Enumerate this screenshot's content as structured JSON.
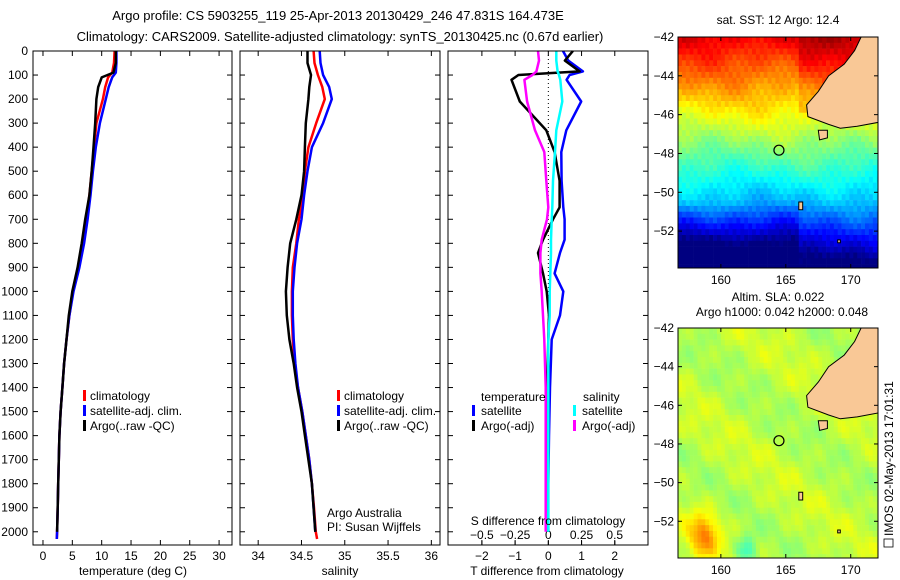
{
  "header": {
    "title_line1": "Argo profile: CS 5903255_119 25-Apr-2013 20130429_246 47.831S 164.473E",
    "title_line2": "Climatology: CARS2009. Satellite-adjusted climatology: synTS_20130425.nc (0.67d earlier)"
  },
  "footer_stamp": "IMOS 02-May-2013 17:01:31",
  "colors": {
    "climatology": "#ff0000",
    "satellite": "#0000ff",
    "argo": "#000000",
    "sal_satellite": "#00ffff",
    "sal_argo": "#ff00ff",
    "land": "#f9c896"
  },
  "chart_data": [
    {
      "type": "line",
      "id": "temperature",
      "xlabel": "temperature (deg C)",
      "ylabel": "",
      "xlim": [
        -1.7,
        32.2
      ],
      "ylim": [
        2055,
        0
      ],
      "xticks": [
        0,
        5,
        10,
        15,
        20,
        25,
        30
      ],
      "yticks": [
        0,
        100,
        200,
        300,
        400,
        500,
        600,
        700,
        800,
        900,
        1000,
        1100,
        1200,
        1300,
        1400,
        1500,
        1600,
        1700,
        1800,
        1900,
        2000
      ],
      "depth": [
        0,
        50,
        90,
        110,
        150,
        200,
        300,
        400,
        500,
        600,
        700,
        800,
        900,
        1000,
        1100,
        1200,
        1300,
        1400,
        1500,
        1600,
        1700,
        1800,
        1900,
        2000,
        2030
      ],
      "legend": [
        "climatology",
        "satellite-adj. clim.",
        "Argo(..raw -QC)"
      ],
      "legend_position": "center",
      "series": [
        {
          "name": "climatology",
          "color": "#ff0000",
          "values": [
            12.2,
            12.1,
            11.8,
            11.1,
            10.6,
            10.2,
            9.1,
            8.7,
            8.3,
            7.9,
            7.4,
            6.8,
            6.0,
            5.1,
            4.5,
            4.0,
            3.6,
            3.3,
            3.0,
            2.8,
            2.7,
            2.6,
            2.5,
            2.4,
            2.35
          ]
        },
        {
          "name": "satellite-adj. clim.",
          "color": "#0000ff",
          "values": [
            12.5,
            12.5,
            12.4,
            11.8,
            11.2,
            10.7,
            9.7,
            9.0,
            8.5,
            8.1,
            7.6,
            7.0,
            6.2,
            5.2,
            4.5,
            4.0,
            3.6,
            3.3,
            3.0,
            2.8,
            2.7,
            2.6,
            2.5,
            2.4,
            2.35
          ]
        },
        {
          "name": "Argo(..raw -QC)",
          "color": "#000000",
          "values": [
            12.4,
            12.4,
            12.0,
            10.0,
            9.4,
            9.1,
            8.9,
            8.6,
            8.3,
            7.9,
            7.2,
            6.6,
            5.9,
            5.0,
            4.4,
            4.0,
            3.6,
            3.3,
            3.0,
            2.8,
            2.7,
            2.6,
            2.5,
            2.4,
            null
          ]
        }
      ]
    },
    {
      "type": "line",
      "id": "salinity",
      "xlabel": "salinity",
      "xlim": [
        33.79,
        36.1
      ],
      "ylim": [
        2055,
        0
      ],
      "xticks": [
        34,
        34.5,
        35,
        35.5,
        36
      ],
      "depth": [
        0,
        50,
        100,
        150,
        200,
        300,
        400,
        500,
        600,
        700,
        800,
        900,
        1000,
        1100,
        1200,
        1300,
        1400,
        1500,
        1600,
        1700,
        1800,
        1900,
        2000,
        2030
      ],
      "legend": [
        "climatology",
        "satellite-adj. clim.",
        "Argo(..raw -QC)"
      ],
      "annotation": [
        "Argo Australia",
        "PI: Susan Wijffels"
      ],
      "series": [
        {
          "name": "climatology",
          "color": "#ff0000",
          "values": [
            34.64,
            34.65,
            34.69,
            34.74,
            34.77,
            34.67,
            34.58,
            34.54,
            34.52,
            34.47,
            34.44,
            34.4,
            34.39,
            34.39,
            34.4,
            34.42,
            34.46,
            34.51,
            34.55,
            34.59,
            34.62,
            34.645,
            34.665,
            34.68
          ]
        },
        {
          "name": "satellite-adj. clim.",
          "color": "#0000ff",
          "values": [
            34.71,
            34.72,
            34.75,
            34.82,
            34.85,
            34.75,
            34.62,
            34.57,
            34.53,
            34.5,
            34.45,
            34.42,
            34.4,
            34.4,
            34.41,
            34.43,
            34.46,
            34.51,
            34.55,
            34.59,
            34.62,
            34.64,
            34.66,
            null
          ]
        },
        {
          "name": "Argo(..raw -QC)",
          "color": "#000000",
          "values": [
            34.57,
            34.57,
            34.61,
            34.59,
            34.58,
            34.55,
            34.54,
            34.53,
            34.5,
            34.44,
            34.37,
            34.34,
            34.32,
            34.33,
            34.36,
            34.41,
            34.45,
            34.5,
            34.54,
            34.58,
            34.62,
            34.64,
            34.66,
            null
          ]
        }
      ]
    },
    {
      "type": "line",
      "id": "difference",
      "xlabel": "T difference from climatology",
      "x2label": "S difference from climatology",
      "xlim": [
        -3.02,
        3.0
      ],
      "ylim": [
        2055,
        0
      ],
      "xticks": [
        -2,
        -1,
        0,
        1,
        2
      ],
      "x2ticks": [
        -0.5,
        -0.25,
        0,
        0.25,
        0.5
      ],
      "x2tick_labels": [
        "-0.5",
        "-0.25",
        "0",
        "0.25",
        "0.5"
      ],
      "depth": [
        0,
        40,
        85,
        100,
        120,
        210,
        330,
        420,
        540,
        650,
        700,
        785,
        840,
        925,
        1000,
        1100,
        1200,
        1400,
        1600,
        1800,
        2000
      ],
      "legend_titles": [
        "temperature",
        "salinity"
      ],
      "legend": [
        "satellite",
        "Argo(-adj)",
        "satellite",
        "Argo(-adj)"
      ],
      "series": [
        {
          "name": "temperature satellite",
          "axis": "T",
          "color": "#0000ff",
          "values": [
            0.44,
            0.6,
            1.04,
            0.64,
            0.55,
            0.99,
            0.54,
            0.39,
            0.4,
            0.45,
            0.49,
            0.49,
            0.35,
            0.19,
            0.45,
            0.35,
            0.1,
            0.05,
            0.02,
            0.0,
            0.0
          ]
        },
        {
          "name": "temperature Argo(-adj)",
          "axis": "T",
          "color": "#000000",
          "values": [
            0.74,
            0.5,
            0.94,
            -0.9,
            -1.11,
            -0.86,
            -0.06,
            0.19,
            0.34,
            0.34,
            0.14,
            -0.16,
            -0.31,
            -0.16,
            -0.05,
            0.02,
            0.0,
            -0.03,
            -0.02,
            -0.01,
            0.0
          ]
        },
        {
          "name": "salinity satellite",
          "axis": "S",
          "color": "#00ffff",
          "values": [
            0.06,
            0.06,
            0.07,
            0.08,
            0.09,
            0.105,
            0.06,
            0.05,
            0.035,
            0.03,
            0.025,
            0.02,
            0.02,
            0.015,
            0.01,
            0.01,
            0.0,
            0.0,
            0.0,
            0.0,
            0.0
          ]
        },
        {
          "name": "salinity Argo(-adj)",
          "axis": "S",
          "color": "#ff00ff",
          "values": [
            -0.078,
            -0.07,
            -0.09,
            -0.12,
            -0.18,
            -0.16,
            -0.1,
            -0.03,
            -0.015,
            0.0,
            -0.01,
            -0.05,
            -0.06,
            -0.06,
            -0.05,
            -0.04,
            -0.03,
            -0.02,
            -0.02,
            -0.02,
            -0.02
          ]
        }
      ]
    },
    {
      "type": "heatmap",
      "id": "sst_map",
      "title": "sat. SST: 12 Argo: 12.4",
      "xlim": [
        156.7,
        172.1
      ],
      "ylim": [
        -53.9,
        -42
      ],
      "xticks": [
        160,
        165,
        170
      ],
      "yticks": [
        -42,
        -44,
        -46,
        -48,
        -50,
        -52
      ],
      "argo_position": {
        "lon": 164.473,
        "lat": -47.831
      }
    },
    {
      "type": "heatmap",
      "id": "sla_map",
      "title": "Altim. SLA: 0.022",
      "subtitle": "Argo h1000: 0.042 h2000: 0.048",
      "xlim": [
        156.7,
        172.1
      ],
      "ylim": [
        -53.9,
        -42
      ],
      "xticks": [
        160,
        165,
        170
      ],
      "yticks": [
        -42,
        -44,
        -46,
        -48,
        -50,
        -52
      ],
      "argo_position": {
        "lon": 164.473,
        "lat": -47.831
      }
    }
  ]
}
